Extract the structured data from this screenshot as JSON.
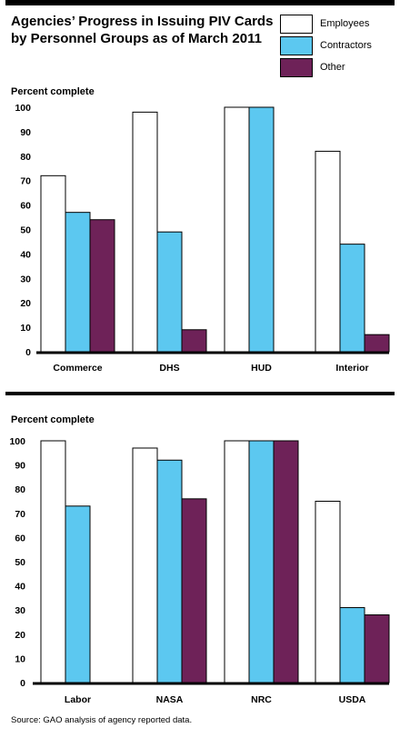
{
  "title": "Agencies’ Progress in Issuing PIV Cards\nby Personnel Groups as of March 2011",
  "title_line1": "Agencies’ Progress in Issuing PIV Cards",
  "title_line2": "by Personnel Groups as of March 2011",
  "legend": [
    {
      "name": "Employees",
      "color": "#ffffff"
    },
    {
      "name": "Contractors",
      "color": "#5cc8f0"
    },
    {
      "name": "Other",
      "color": "#6e2258"
    }
  ],
  "source": "Source: GAO analysis of agency reported data.",
  "chart_data": [
    {
      "type": "bar",
      "ylabel": "Percent complete",
      "ylim": [
        0,
        100
      ],
      "yticks": [
        0,
        10,
        20,
        30,
        40,
        50,
        60,
        70,
        80,
        90,
        100
      ],
      "categories": [
        "Commerce",
        "DHS",
        "HUD",
        "Interior"
      ],
      "series": [
        {
          "name": "Employees",
          "values": [
            72,
            98,
            100,
            82
          ]
        },
        {
          "name": "Contractors",
          "values": [
            57,
            49,
            100,
            44
          ]
        },
        {
          "name": "Other",
          "values": [
            54,
            9,
            0,
            7
          ]
        }
      ],
      "legend": "top-right",
      "grid": false
    },
    {
      "type": "bar",
      "ylabel": "Percent complete",
      "ylim": [
        0,
        100
      ],
      "yticks": [
        0,
        10,
        20,
        30,
        40,
        50,
        60,
        70,
        80,
        90,
        100
      ],
      "categories": [
        "Labor",
        "NASA",
        "NRC",
        "USDA"
      ],
      "series": [
        {
          "name": "Employees",
          "values": [
            100,
            97,
            100,
            75
          ]
        },
        {
          "name": "Contractors",
          "values": [
            73,
            92,
            100,
            31
          ]
        },
        {
          "name": "Other",
          "values": [
            0,
            76,
            100,
            28
          ]
        }
      ],
      "legend": "top-right",
      "grid": false
    }
  ]
}
